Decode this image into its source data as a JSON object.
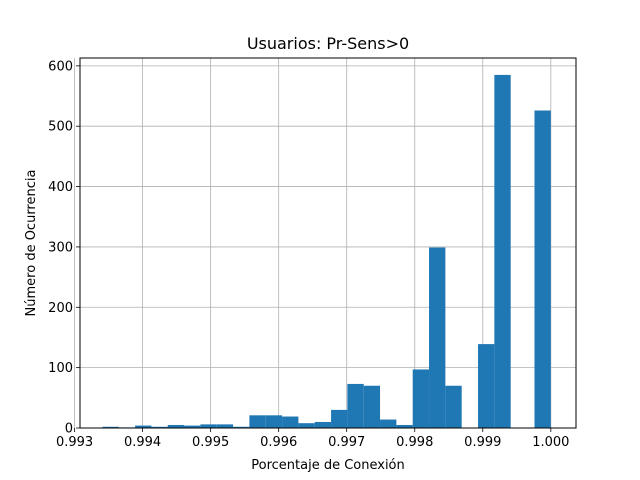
{
  "chart_data": {
    "type": "bar",
    "title": "Usuarios: Pr-Sens>0",
    "xlabel": "Porcentaje de Conexión",
    "ylabel": "Número de Ocurrencia",
    "xlim": [
      0.99308,
      1.00037
    ],
    "ylim": [
      0,
      613
    ],
    "grid": true,
    "bar_color": "#1f77b4",
    "x_ticks": [
      {
        "value": 0.993,
        "label": "0.993"
      },
      {
        "value": 0.994,
        "label": "0.994"
      },
      {
        "value": 0.995,
        "label": "0.995"
      },
      {
        "value": 0.996,
        "label": "0.996"
      },
      {
        "value": 0.997,
        "label": "0.997"
      },
      {
        "value": 0.998,
        "label": "0.998"
      },
      {
        "value": 0.999,
        "label": "0.999"
      },
      {
        "value": 1.0,
        "label": "1.000"
      }
    ],
    "y_ticks": [
      {
        "value": 0,
        "label": "0"
      },
      {
        "value": 100,
        "label": "100"
      },
      {
        "value": 200,
        "label": "200"
      },
      {
        "value": 300,
        "label": "300"
      },
      {
        "value": 400,
        "label": "400"
      },
      {
        "value": 500,
        "label": "500"
      },
      {
        "value": 600,
        "label": "600"
      }
    ],
    "bins": [
      {
        "x0": 0.99341,
        "x1": 0.99365,
        "count": 2
      },
      {
        "x0": 0.99365,
        "x1": 0.99389,
        "count": 1
      },
      {
        "x0": 0.99389,
        "x1": 0.99413,
        "count": 4
      },
      {
        "x0": 0.99413,
        "x1": 0.99437,
        "count": 2
      },
      {
        "x0": 0.99437,
        "x1": 0.99461,
        "count": 5
      },
      {
        "x0": 0.99461,
        "x1": 0.99485,
        "count": 4
      },
      {
        "x0": 0.99485,
        "x1": 0.99509,
        "count": 6
      },
      {
        "x0": 0.99509,
        "x1": 0.99533,
        "count": 6
      },
      {
        "x0": 0.99533,
        "x1": 0.99557,
        "count": 2
      },
      {
        "x0": 0.99557,
        "x1": 0.99581,
        "count": 21
      },
      {
        "x0": 0.99581,
        "x1": 0.99605,
        "count": 21
      },
      {
        "x0": 0.99605,
        "x1": 0.99629,
        "count": 19
      },
      {
        "x0": 0.99629,
        "x1": 0.99653,
        "count": 8
      },
      {
        "x0": 0.99653,
        "x1": 0.99677,
        "count": 10
      },
      {
        "x0": 0.99677,
        "x1": 0.99701,
        "count": 30
      },
      {
        "x0": 0.99701,
        "x1": 0.99725,
        "count": 73
      },
      {
        "x0": 0.99725,
        "x1": 0.99749,
        "count": 70
      },
      {
        "x0": 0.99749,
        "x1": 0.99773,
        "count": 14
      },
      {
        "x0": 0.99773,
        "x1": 0.99797,
        "count": 5
      },
      {
        "x0": 0.99797,
        "x1": 0.99821,
        "count": 97
      },
      {
        "x0": 0.99821,
        "x1": 0.99845,
        "count": 299
      },
      {
        "x0": 0.99845,
        "x1": 0.99869,
        "count": 70
      },
      {
        "x0": 0.99893,
        "x1": 0.99917,
        "count": 139
      },
      {
        "x0": 0.99917,
        "x1": 0.99941,
        "count": 585
      },
      {
        "x0": 0.99976,
        "x1": 1.0,
        "count": 526
      }
    ]
  }
}
